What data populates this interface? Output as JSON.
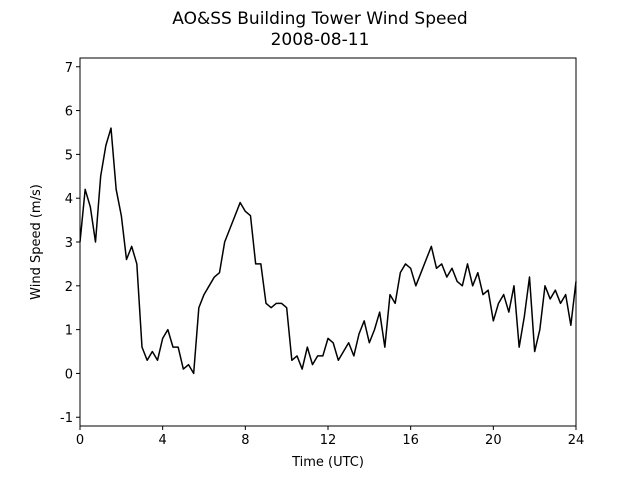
{
  "chart_data": {
    "type": "line",
    "title": "AO&SS Building Tower Wind Speed",
    "subtitle": "2008-08-11",
    "xlabel": "Time (UTC)",
    "ylabel": "Wind Speed (m/s)",
    "xlim": [
      0,
      24
    ],
    "xticks": [
      0,
      4,
      8,
      12,
      16,
      20,
      24
    ],
    "ylim": [
      -1.2,
      7.2
    ],
    "yticks": [
      -1,
      0,
      1,
      2,
      3,
      4,
      5,
      6,
      7
    ],
    "x": [
      0,
      0.25,
      0.5,
      0.75,
      1,
      1.25,
      1.5,
      1.75,
      2,
      2.25,
      2.5,
      2.75,
      3,
      3.25,
      3.5,
      3.75,
      4,
      4.25,
      4.5,
      4.75,
      5,
      5.25,
      5.5,
      5.75,
      6,
      6.25,
      6.5,
      6.75,
      7,
      7.25,
      7.5,
      7.75,
      8,
      8.25,
      8.5,
      8.75,
      9,
      9.25,
      9.5,
      9.75,
      10,
      10.25,
      10.5,
      10.75,
      11,
      11.25,
      11.5,
      11.75,
      12,
      12.25,
      12.5,
      12.75,
      13,
      13.25,
      13.5,
      13.75,
      14,
      14.25,
      14.5,
      14.75,
      15,
      15.25,
      15.5,
      15.75,
      16,
      16.25,
      16.5,
      16.75,
      17,
      17.25,
      17.5,
      17.75,
      18,
      18.25,
      18.5,
      18.75,
      19,
      19.25,
      19.5,
      19.75,
      20,
      20.25,
      20.5,
      20.75,
      21,
      21.25,
      21.5,
      21.75,
      22,
      22.25,
      22.5,
      22.75,
      23,
      23.25,
      23.5,
      23.75,
      24
    ],
    "series": [
      {
        "color": "#000000",
        "values": [
          3.0,
          4.2,
          3.8,
          3.0,
          4.5,
          5.2,
          5.6,
          4.2,
          3.6,
          2.6,
          2.9,
          2.5,
          0.6,
          0.3,
          0.5,
          0.3,
          0.8,
          1.0,
          0.6,
          0.6,
          0.1,
          0.2,
          0.0,
          1.5,
          1.8,
          2.0,
          2.2,
          2.3,
          3.0,
          3.3,
          3.6,
          3.9,
          3.7,
          3.6,
          2.5,
          2.5,
          1.6,
          1.5,
          1.6,
          1.6,
          1.5,
          0.3,
          0.4,
          0.1,
          0.6,
          0.2,
          0.4,
          0.4,
          0.8,
          0.7,
          0.3,
          0.5,
          0.7,
          0.4,
          0.9,
          1.2,
          0.7,
          1.0,
          1.4,
          0.6,
          1.8,
          1.6,
          2.3,
          2.5,
          2.4,
          2.0,
          2.3,
          2.6,
          2.9,
          2.4,
          2.5,
          2.2,
          2.4,
          2.1,
          2.0,
          2.5,
          2.0,
          2.3,
          1.8,
          1.9,
          1.2,
          1.6,
          1.8,
          1.4,
          2.0,
          0.6,
          1.3,
          2.2,
          0.5,
          1.0,
          2.0,
          1.7,
          1.9,
          1.6,
          1.8,
          1.1,
          2.1
        ]
      }
    ]
  }
}
